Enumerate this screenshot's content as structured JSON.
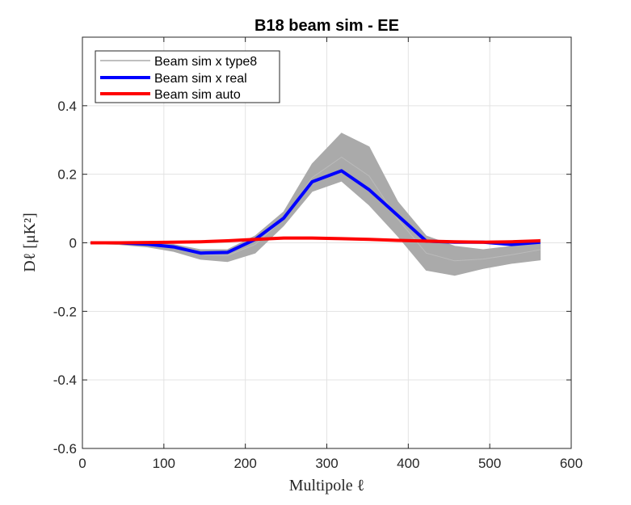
{
  "chart_data": {
    "type": "line",
    "title": "B18 beam sim - EE",
    "xlabel": "Multipole ℓ",
    "ylabel": "Dℓ [μK²]",
    "xlim": [
      0,
      600
    ],
    "ylim": [
      -0.6,
      0.6
    ],
    "x_ticks": [
      0,
      100,
      200,
      300,
      400,
      500,
      600
    ],
    "x_tick_labels": [
      "0",
      "100",
      "200",
      "300",
      "400",
      "500",
      "600"
    ],
    "y_ticks": [
      -0.6,
      -0.4,
      -0.2,
      0,
      0.2,
      0.4
    ],
    "y_tick_labels": [
      "-0.6",
      "-0.4",
      "-0.2",
      "0",
      "0.2",
      "0.4"
    ],
    "grid": true,
    "legend_position": "top-left",
    "x": [
      10,
      45,
      80,
      112,
      145,
      178,
      212,
      247,
      282,
      318,
      352,
      387,
      422,
      457,
      492,
      527,
      562
    ],
    "series": [
      {
        "name": "Beam sim x type8",
        "color": "#aaaaaa",
        "band_upper": [
          0.002,
          0.002,
          0.0,
          -0.005,
          -0.02,
          -0.02,
          0.02,
          0.09,
          0.23,
          0.32,
          0.28,
          0.12,
          0.02,
          -0.01,
          -0.02,
          -0.01,
          0.01
        ],
        "band_lower": [
          -0.002,
          -0.005,
          -0.012,
          -0.025,
          -0.048,
          -0.055,
          -0.03,
          0.05,
          0.15,
          0.18,
          0.11,
          0.02,
          -0.08,
          -0.095,
          -0.075,
          -0.06,
          -0.05
        ]
      },
      {
        "name": "Beam sim x real",
        "color": "#0000ff",
        "values": [
          0.0,
          0.0,
          -0.004,
          -0.012,
          -0.03,
          -0.028,
          0.01,
          0.072,
          0.178,
          0.21,
          0.155,
          0.08,
          0.005,
          0.002,
          0.002,
          -0.005,
          0.002
        ]
      },
      {
        "name": "Beam sim auto",
        "color": "#ff0000",
        "values": [
          0.0,
          0.0,
          0.001,
          0.002,
          0.003,
          0.006,
          0.01,
          0.014,
          0.014,
          0.012,
          0.01,
          0.007,
          0.005,
          0.003,
          0.002,
          0.003,
          0.006
        ]
      }
    ]
  }
}
